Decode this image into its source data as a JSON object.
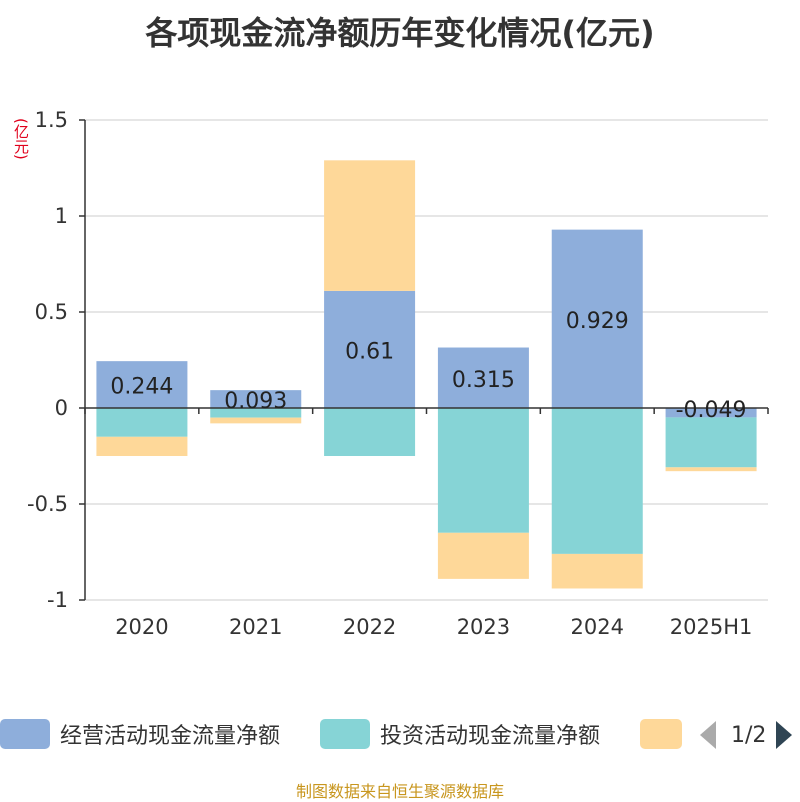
{
  "title": "各项现金流净额历年变化情况(亿元)",
  "unit_label": "(亿元)",
  "source": "制图数据来自恒生聚源数据库",
  "pager": {
    "text": "1/2"
  },
  "colors": {
    "operating": "#8eaedb",
    "investing": "#86d4d6",
    "financing": "#fed899",
    "axis": "#333333",
    "grid": "#cccccc"
  },
  "chart_data": {
    "type": "bar",
    "stacked": true,
    "categories": [
      "2020",
      "2021",
      "2022",
      "2023",
      "2024",
      "2025H1"
    ],
    "series": [
      {
        "name": "经营活动现金流量净额",
        "values": [
          0.244,
          0.093,
          0.61,
          0.315,
          0.929,
          -0.049
        ],
        "labels": [
          "0.244",
          "0.093",
          "0.61",
          "0.315",
          "0.929",
          "-0.049"
        ],
        "color": "#8eaedb"
      },
      {
        "name": "投资活动现金流量净额",
        "values": [
          -0.15,
          -0.05,
          -0.25,
          -0.65,
          -0.76,
          -0.26
        ],
        "color": "#86d4d6"
      },
      {
        "name": "",
        "values": [
          -0.1,
          -0.03,
          0.68,
          -0.24,
          -0.18,
          -0.02
        ],
        "color": "#fed899"
      }
    ],
    "ylim": [
      -1,
      1.5
    ],
    "yticks": [
      "1.5",
      "1",
      "0.5",
      "0",
      "-0.5",
      "-1"
    ],
    "ytick_values": [
      1.5,
      1,
      0.5,
      0,
      -0.5,
      -1
    ],
    "grid": true,
    "legend": "bottom"
  }
}
